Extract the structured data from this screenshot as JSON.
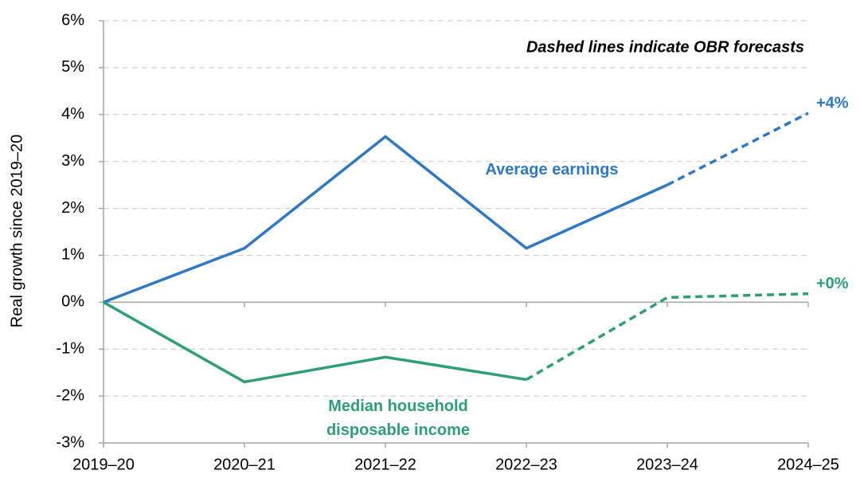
{
  "chart_data": {
    "type": "line",
    "y_label": "Real growth since 2019–20",
    "annotation": "Dashed lines indicate OBR forecasts",
    "categories": [
      "2019–20",
      "2020–21",
      "2021–22",
      "2022–23",
      "2023–24",
      "2024–25"
    ],
    "series": [
      {
        "name": "Average earnings",
        "color": "#2f78c4",
        "values": [
          0,
          1.15,
          3.53,
          1.15,
          2.5,
          4.03
        ],
        "dashed_from": 4,
        "end_label": "+4%"
      },
      {
        "name": "Median household disposable income",
        "color": "#2e9e78",
        "values": [
          0,
          -1.7,
          -1.17,
          -1.65,
          0.1,
          0.18
        ],
        "dashed_from": 3,
        "end_label": "+0%"
      }
    ],
    "ylim": [
      -3,
      6
    ],
    "yticks": [
      {
        "value": -3,
        "label": "-3%"
      },
      {
        "value": -2,
        "label": "-2%"
      },
      {
        "value": -1,
        "label": "-1%"
      },
      {
        "value": 0,
        "label": "0%"
      },
      {
        "value": 1,
        "label": "1%"
      },
      {
        "value": 2,
        "label": "2%"
      },
      {
        "value": 3,
        "label": "3%"
      },
      {
        "value": 4,
        "label": "4%"
      },
      {
        "value": 5,
        "label": "5%"
      },
      {
        "value": 6,
        "label": "6%"
      }
    ],
    "grid": true
  }
}
